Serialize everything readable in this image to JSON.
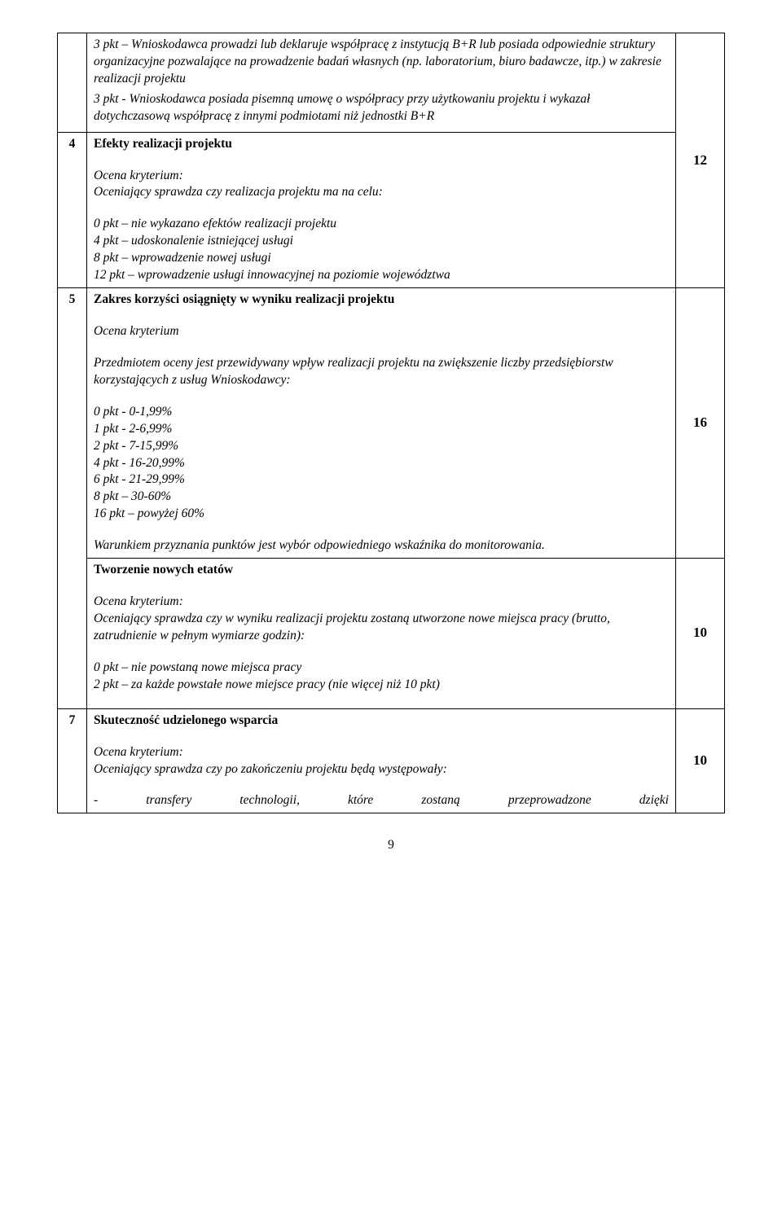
{
  "rows": [
    {
      "num": "",
      "num_bottom": "4",
      "content": {
        "p1": "3 pkt – Wnioskodawca prowadzi lub deklaruje współpracę z instytucją B+R lub posiada odpowiednie struktury organizacyjne pozwalające na prowadzenie badań własnych (np. laboratorium, biuro badawcze, itp.) w zakresie realizacji projektu",
        "p2": "3 pkt - Wnioskodawca posiada pisemną umowę o współpracy przy użytkowaniu projektu i wykazał dotychczasową współpracę z innymi podmiotami niż jednostki B+R",
        "heading": "Efekty realizacji projektu",
        "sub1": "Ocena kryterium:",
        "sub2": "Oceniający sprawdza czy realizacja projektu ma na celu:",
        "l1": "0 pkt – nie wykazano efektów realizacji projektu",
        "l2": "4 pkt – udoskonalenie istniejącej usługi",
        "l3": "8 pkt – wprowadzenie nowej usługi",
        "l4": "12 pkt – wprowadzenie usługi innowacyjnej na poziomie województwa"
      },
      "points": "12"
    },
    {
      "num": "5",
      "content": {
        "heading": "Zakres korzyści osiągnięty w wyniku realizacji projektu",
        "sub1": "Ocena kryterium",
        "sub2": "Przedmiotem oceny jest przewidywany wpływ realizacji projektu na zwiększenie liczby przedsiębiorstw korzystających z usług Wnioskodawcy:",
        "l1": "0 pkt - 0-1,99%",
        "l2": "1 pkt  - 2-6,99%",
        "l3": "2 pkt - 7-15,99%",
        "l4": "4 pkt - 16-20,99%",
        "l5": "6 pkt - 21-29,99%",
        "l6": "8 pkt – 30-60%",
        "l7": "16 pkt – powyżej 60%",
        "footer": "Warunkiem przyznania punktów jest wybór odpowiedniego wskaźnika do monitorowania.",
        "heading2": "Tworzenie nowych etatów",
        "sub3": "Ocena kryterium:",
        "sub4": "Oceniający sprawdza czy w wyniku realizacji projektu zostaną utworzone nowe miejsca pracy  (brutto, zatrudnienie w pełnym wymiarze godzin):",
        "l8": "0 pkt – nie powstaną nowe  miejsca pracy",
        "l9": "2 pkt – za każde powstałe nowe miejsce pracy (nie więcej niż 10 pkt)"
      },
      "points1": "16",
      "points2": "10"
    },
    {
      "num": "7",
      "content": {
        "heading": "Skuteczność udzielonego wsparcia",
        "sub1": "Ocena kryterium:",
        "sub2": "Oceniający sprawdza czy po zakończeniu projektu będą występowały:",
        "line_parts": [
          "-",
          "transfery",
          "technologii,",
          "które",
          "zostaną",
          "przeprowadzone",
          "dzięki"
        ]
      },
      "points": "10"
    }
  ],
  "page_number": "9"
}
